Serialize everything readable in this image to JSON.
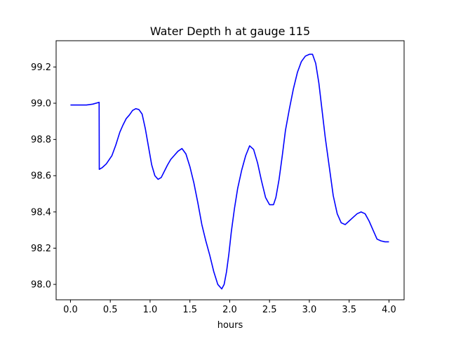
{
  "chart_data": {
    "type": "line",
    "title": "Water Depth h at gauge 115",
    "xlabel": "hours",
    "ylabel": "",
    "xlim": [
      -0.18,
      4.19
    ],
    "ylim": [
      97.915,
      99.345
    ],
    "xticks": [
      0.0,
      0.5,
      1.0,
      1.5,
      2.0,
      2.5,
      3.0,
      3.5,
      4.0
    ],
    "xtick_labels": [
      "0.0",
      "0.5",
      "1.0",
      "1.5",
      "2.0",
      "2.5",
      "3.0",
      "3.5",
      "4.0"
    ],
    "yticks": [
      98.0,
      98.2,
      98.4,
      98.6,
      98.8,
      99.0,
      99.2
    ],
    "ytick_labels": [
      "98.0",
      "98.2",
      "98.4",
      "98.6",
      "98.8",
      "99.0",
      "99.2"
    ],
    "grid": false,
    "color": "#0000ff",
    "series": [
      {
        "name": "",
        "x": [
          0.0,
          0.1,
          0.2,
          0.28,
          0.36,
          0.362,
          0.4,
          0.45,
          0.52,
          0.57,
          0.62,
          0.66,
          0.7,
          0.74,
          0.78,
          0.82,
          0.86,
          0.9,
          0.94,
          0.98,
          1.02,
          1.06,
          1.1,
          1.14,
          1.18,
          1.22,
          1.26,
          1.3,
          1.35,
          1.4,
          1.45,
          1.5,
          1.55,
          1.6,
          1.65,
          1.7,
          1.75,
          1.8,
          1.85,
          1.9,
          1.93,
          1.96,
          1.99,
          2.02,
          2.06,
          2.1,
          2.15,
          2.2,
          2.25,
          2.3,
          2.35,
          2.4,
          2.45,
          2.5,
          2.55,
          2.58,
          2.62,
          2.66,
          2.7,
          2.75,
          2.8,
          2.85,
          2.9,
          2.95,
          3.0,
          3.04,
          3.08,
          3.12,
          3.16,
          3.2,
          3.25,
          3.3,
          3.35,
          3.4,
          3.45,
          3.5,
          3.55,
          3.6,
          3.65,
          3.7,
          3.75,
          3.8,
          3.85,
          3.9,
          3.95,
          4.0
        ],
        "y": [
          98.99,
          98.99,
          98.99,
          98.995,
          99.005,
          98.635,
          98.645,
          98.665,
          98.71,
          98.77,
          98.84,
          98.88,
          98.915,
          98.935,
          98.96,
          98.97,
          98.965,
          98.94,
          98.86,
          98.76,
          98.66,
          98.6,
          98.58,
          98.59,
          98.625,
          98.66,
          98.69,
          98.71,
          98.735,
          98.75,
          98.72,
          98.65,
          98.56,
          98.45,
          98.33,
          98.24,
          98.16,
          98.07,
          98.0,
          97.975,
          98.0,
          98.07,
          98.17,
          98.29,
          98.42,
          98.53,
          98.63,
          98.71,
          98.765,
          98.745,
          98.67,
          98.57,
          98.48,
          98.44,
          98.44,
          98.48,
          98.58,
          98.71,
          98.85,
          98.97,
          99.08,
          99.17,
          99.23,
          99.26,
          99.27,
          99.27,
          99.22,
          99.11,
          98.96,
          98.81,
          98.65,
          98.49,
          98.39,
          98.34,
          98.33,
          98.35,
          98.37,
          98.39,
          98.4,
          98.39,
          98.35,
          98.3,
          98.25,
          98.24,
          98.235,
          98.235
        ]
      }
    ]
  }
}
